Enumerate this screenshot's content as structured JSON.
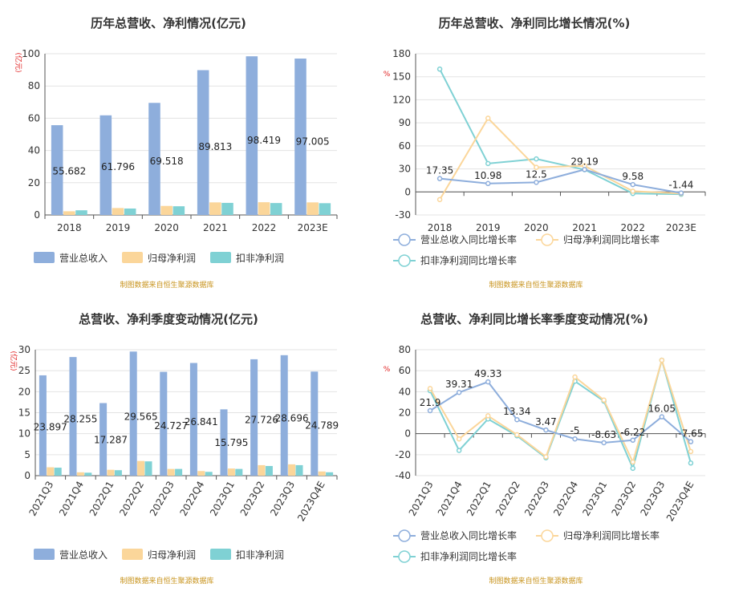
{
  "source_note": "制图数据来自恒生聚源数据库",
  "chart_data": [
    {
      "type": "bar",
      "title": "历年总营收、净利情况(亿元)",
      "unit": "(亿元)",
      "categories": [
        "2018",
        "2019",
        "2020",
        "2021",
        "2022",
        "2023E"
      ],
      "ylim": [
        0,
        100
      ],
      "yticks": [
        "0",
        "20",
        "40",
        "60",
        "80",
        "100"
      ],
      "series": [
        {
          "name": "营业总收入",
          "color": "#8eaedc",
          "values": [
            55.682,
            61.796,
            69.518,
            89.813,
            98.419,
            97.005
          ]
        },
        {
          "name": "归母净利润",
          "color": "#fbd69a",
          "values": [
            2.3,
            4.3,
            5.6,
            7.8,
            7.9,
            7.8
          ]
        },
        {
          "name": "扣非净利润",
          "color": "#7fd1d4",
          "values": [
            2.9,
            4.0,
            5.4,
            7.5,
            7.4,
            7.3
          ]
        }
      ],
      "data_labels": [
        "55.682",
        "61.796",
        "69.518",
        "89.813",
        "98.419",
        "97.005"
      ]
    },
    {
      "type": "line",
      "title": "历年总营收、净利同比增长情况(%)",
      "unit": "%",
      "categories": [
        "2018",
        "2019",
        "2020",
        "2021",
        "2022",
        "2023E"
      ],
      "ylim": [
        -30,
        180
      ],
      "yticks": [
        "-30",
        "0",
        "30",
        "60",
        "90",
        "120",
        "150",
        "180"
      ],
      "series": [
        {
          "name": "营业总收入同比增长率",
          "color": "#8eaedc",
          "values": [
            17.35,
            10.98,
            12.5,
            29.19,
            9.58,
            -1.44
          ]
        },
        {
          "name": "归母净利润同比增长率",
          "color": "#fbd69a",
          "values": [
            -10,
            96,
            32,
            34,
            1,
            -2
          ]
        },
        {
          "name": "扣非净利润同比增长率",
          "color": "#7fd1d4",
          "values": [
            160,
            37,
            43,
            29,
            -2,
            -3
          ]
        }
      ],
      "data_labels": [
        "17.35",
        "10.98",
        "12.5",
        "29.19",
        "9.58",
        "-1.44"
      ]
    },
    {
      "type": "bar",
      "title": "总营收、净利季度变动情况(亿元)",
      "unit": "(亿元)",
      "categories": [
        "2021Q3",
        "2021Q4",
        "2022Q1",
        "2022Q2",
        "2022Q3",
        "2022Q4",
        "2023Q1",
        "2023Q2",
        "2023Q3",
        "2023Q4E"
      ],
      "ylim": [
        0,
        30
      ],
      "yticks": [
        "0",
        "5",
        "10",
        "15",
        "20",
        "25",
        "30"
      ],
      "series": [
        {
          "name": "营业总收入",
          "color": "#8eaedc",
          "values": [
            23.897,
            28.255,
            17.287,
            29.565,
            24.727,
            26.841,
            15.795,
            27.726,
            28.696,
            24.789
          ]
        },
        {
          "name": "归母净利润",
          "color": "#fbd69a",
          "values": [
            2.0,
            0.8,
            1.4,
            3.5,
            1.6,
            1.1,
            1.7,
            2.5,
            2.7,
            1.0
          ]
        },
        {
          "name": "扣非净利润",
          "color": "#7fd1d4",
          "values": [
            1.9,
            0.7,
            1.3,
            3.4,
            1.6,
            0.9,
            1.6,
            2.3,
            2.5,
            0.8
          ]
        }
      ],
      "data_labels": [
        "23.897",
        "28.255",
        "17.287",
        "29.565",
        "24.727",
        "26.841",
        "15.795",
        "27.726",
        "28.696",
        "24.789"
      ]
    },
    {
      "type": "line",
      "title": "总营收、净利同比增长率季度变动情况(%)",
      "unit": "%",
      "categories": [
        "2021Q3",
        "2021Q4",
        "2022Q1",
        "2022Q2",
        "2022Q3",
        "2022Q4",
        "2023Q1",
        "2023Q2",
        "2023Q3",
        "2023Q4E"
      ],
      "ylim": [
        -40,
        80
      ],
      "yticks": [
        "-40",
        "-20",
        "0",
        "20",
        "40",
        "60",
        "80"
      ],
      "series": [
        {
          "name": "营业总收入同比增长率",
          "color": "#8eaedc",
          "values": [
            21.9,
            39.31,
            49.33,
            13.34,
            3.47,
            -5,
            -8.63,
            -6.22,
            16.05,
            -7.65
          ]
        },
        {
          "name": "归母净利润同比增长率",
          "color": "#fbd69a",
          "values": [
            43,
            -5,
            17,
            -1,
            -22,
            54,
            32,
            -27,
            70,
            -17
          ]
        },
        {
          "name": "扣非净利润同比增长率",
          "color": "#7fd1d4",
          "values": [
            41,
            -16,
            14,
            -2,
            -23,
            50,
            31,
            -33,
            70,
            -28
          ]
        }
      ],
      "data_labels": [
        "21.9",
        "39.31",
        "49.33",
        "13.34",
        "3.47",
        "-5",
        "-8.63",
        "-6.22",
        "16.05",
        "-7.65"
      ]
    }
  ]
}
